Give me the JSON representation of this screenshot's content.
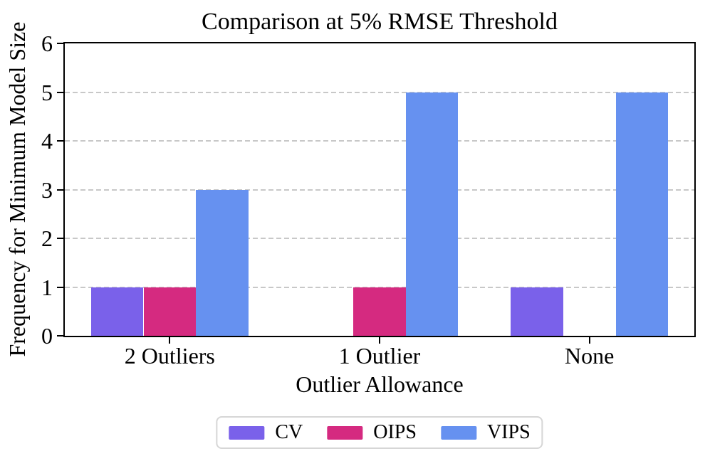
{
  "chart_data": {
    "type": "bar",
    "title": "Comparison at 5% RMSE Threshold",
    "xlabel": "Outlier Allowance",
    "ylabel": "Frequency for Minimum Model Size",
    "categories": [
      "2 Outliers",
      "1 Outlier",
      "None"
    ],
    "series": [
      {
        "name": "CV",
        "color": "#7a61ea",
        "values": [
          1,
          0,
          1
        ]
      },
      {
        "name": "OIPS",
        "color": "#d52a80",
        "values": [
          1,
          1,
          0
        ]
      },
      {
        "name": "VIPS",
        "color": "#6691f0",
        "values": [
          3,
          5,
          5
        ]
      }
    ],
    "ylim": [
      0,
      6
    ],
    "yticks": [
      0,
      1,
      2,
      3,
      4,
      5,
      6
    ],
    "bar_width_fraction": 0.25,
    "grid": "horizontal-dashed",
    "legend_position": "bottom-center"
  },
  "colors": {
    "axis": "#000000",
    "grid": "#c8c8c8",
    "legend_border": "#d6d6d6",
    "background": "#ffffff"
  }
}
